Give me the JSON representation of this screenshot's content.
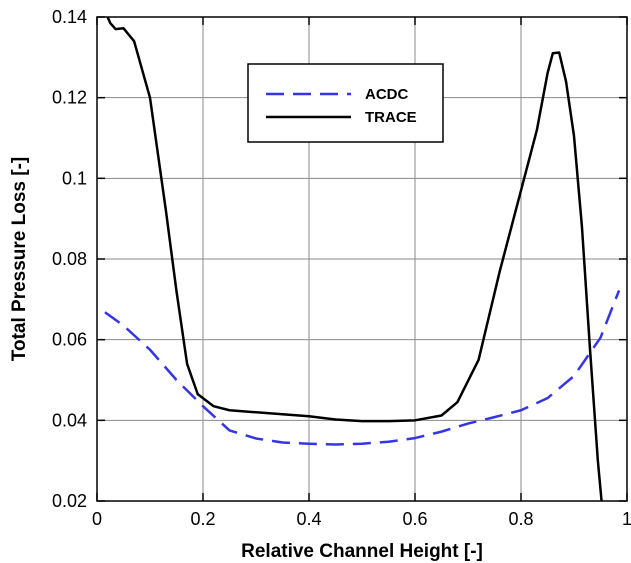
{
  "chart_data": {
    "type": "line",
    "xlabel": "Relative Channel Height [-]",
    "ylabel": "Total Pressure Loss [-]",
    "xlim": [
      0,
      1
    ],
    "ylim": [
      0.02,
      0.14
    ],
    "x_ticks": [
      0,
      0.2,
      0.4,
      0.6,
      0.8,
      1
    ],
    "x_tick_labels": [
      "0",
      "0.2",
      "0.4",
      "0.6",
      "0.8",
      "1"
    ],
    "y_ticks": [
      0.02,
      0.04,
      0.06,
      0.08,
      0.1,
      0.12,
      0.14
    ],
    "y_tick_labels": [
      "0.02",
      "0.04",
      "0.06",
      "0.08",
      "0.1",
      "0.12",
      "0.14"
    ],
    "grid": true,
    "legend_position": "top-center",
    "series": [
      {
        "name": "ACDC",
        "color": "#3535e6",
        "dash": "dashed",
        "points": [
          [
            0.015,
            0.0668
          ],
          [
            0.05,
            0.0635
          ],
          [
            0.1,
            0.0575
          ],
          [
            0.15,
            0.05
          ],
          [
            0.2,
            0.0435
          ],
          [
            0.25,
            0.0375
          ],
          [
            0.3,
            0.0355
          ],
          [
            0.35,
            0.0345
          ],
          [
            0.4,
            0.0342
          ],
          [
            0.45,
            0.034
          ],
          [
            0.5,
            0.0342
          ],
          [
            0.55,
            0.0347
          ],
          [
            0.6,
            0.0356
          ],
          [
            0.65,
            0.0372
          ],
          [
            0.7,
            0.0392
          ],
          [
            0.75,
            0.0408
          ],
          [
            0.8,
            0.0425
          ],
          [
            0.85,
            0.0455
          ],
          [
            0.9,
            0.051
          ],
          [
            0.95,
            0.0605
          ],
          [
            0.985,
            0.0722
          ]
        ]
      },
      {
        "name": "TRACE",
        "color": "#000000",
        "dash": "solid",
        "points": [
          [
            0.02,
            0.14
          ],
          [
            0.025,
            0.1385
          ],
          [
            0.035,
            0.137
          ],
          [
            0.05,
            0.1372
          ],
          [
            0.07,
            0.134
          ],
          [
            0.1,
            0.12
          ],
          [
            0.13,
            0.092
          ],
          [
            0.15,
            0.072
          ],
          [
            0.17,
            0.054
          ],
          [
            0.19,
            0.0465
          ],
          [
            0.22,
            0.0435
          ],
          [
            0.25,
            0.0425
          ],
          [
            0.3,
            0.042
          ],
          [
            0.35,
            0.0415
          ],
          [
            0.4,
            0.041
          ],
          [
            0.45,
            0.0402
          ],
          [
            0.5,
            0.0398
          ],
          [
            0.55,
            0.0398
          ],
          [
            0.6,
            0.04
          ],
          [
            0.65,
            0.0412
          ],
          [
            0.68,
            0.0445
          ],
          [
            0.72,
            0.055
          ],
          [
            0.76,
            0.077
          ],
          [
            0.8,
            0.097
          ],
          [
            0.83,
            0.112
          ],
          [
            0.85,
            0.126
          ],
          [
            0.86,
            0.131
          ],
          [
            0.872,
            0.1312
          ],
          [
            0.885,
            0.124
          ],
          [
            0.9,
            0.1105
          ],
          [
            0.915,
            0.088
          ],
          [
            0.93,
            0.058
          ],
          [
            0.945,
            0.03
          ],
          [
            0.952,
            0.02
          ]
        ]
      }
    ]
  }
}
